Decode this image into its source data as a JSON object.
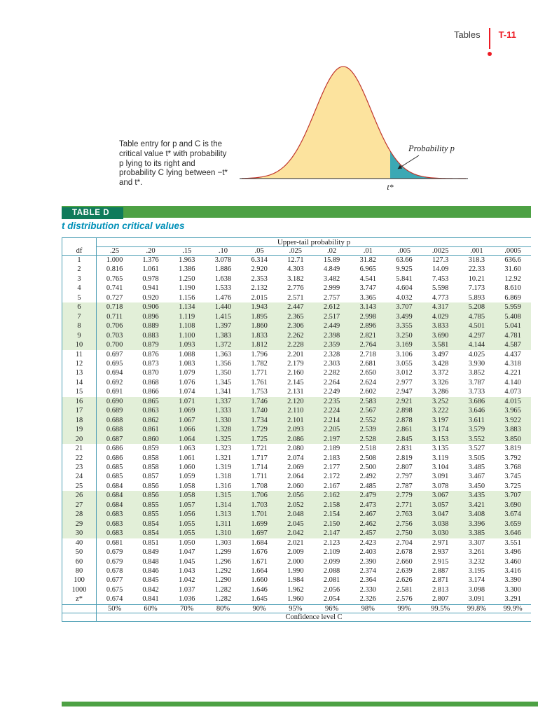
{
  "page": {
    "running_head": "Tables",
    "page_number": "T-11"
  },
  "figure": {
    "caption": "Table entry for p and C is the critical value t* with probability p lying to its right and probability C lying between −t* and t*.",
    "probability_label": "Probability p",
    "critical_value_label": "t*"
  },
  "table": {
    "label": "TABLE D",
    "title": "t distribution critical values",
    "upper_header": "Upper-tail probability p",
    "df_header": "df",
    "col_headers": [
      ".25",
      ".20",
      ".15",
      ".10",
      ".05",
      ".025",
      ".02",
      ".01",
      ".005",
      ".0025",
      ".001",
      ".0005"
    ],
    "rows": [
      {
        "df": "1",
        "values": [
          "1.000",
          "1.376",
          "1.963",
          "3.078",
          "6.314",
          "12.71",
          "15.89",
          "31.82",
          "63.66",
          "127.3",
          "318.3",
          "636.6"
        ]
      },
      {
        "df": "2",
        "values": [
          "0.816",
          "1.061",
          "1.386",
          "1.886",
          "2.920",
          "4.303",
          "4.849",
          "6.965",
          "9.925",
          "14.09",
          "22.33",
          "31.60"
        ]
      },
      {
        "df": "3",
        "values": [
          "0.765",
          "0.978",
          "1.250",
          "1.638",
          "2.353",
          "3.182",
          "3.482",
          "4.541",
          "5.841",
          "7.453",
          "10.21",
          "12.92"
        ]
      },
      {
        "df": "4",
        "values": [
          "0.741",
          "0.941",
          "1.190",
          "1.533",
          "2.132",
          "2.776",
          "2.999",
          "3.747",
          "4.604",
          "5.598",
          "7.173",
          "8.610"
        ]
      },
      {
        "df": "5",
        "values": [
          "0.727",
          "0.920",
          "1.156",
          "1.476",
          "2.015",
          "2.571",
          "2.757",
          "3.365",
          "4.032",
          "4.773",
          "5.893",
          "6.869"
        ]
      },
      {
        "df": "6",
        "values": [
          "0.718",
          "0.906",
          "1.134",
          "1.440",
          "1.943",
          "2.447",
          "2.612",
          "3.143",
          "3.707",
          "4.317",
          "5.208",
          "5.959"
        ]
      },
      {
        "df": "7",
        "values": [
          "0.711",
          "0.896",
          "1.119",
          "1.415",
          "1.895",
          "2.365",
          "2.517",
          "2.998",
          "3.499",
          "4.029",
          "4.785",
          "5.408"
        ]
      },
      {
        "df": "8",
        "values": [
          "0.706",
          "0.889",
          "1.108",
          "1.397",
          "1.860",
          "2.306",
          "2.449",
          "2.896",
          "3.355",
          "3.833",
          "4.501",
          "5.041"
        ]
      },
      {
        "df": "9",
        "values": [
          "0.703",
          "0.883",
          "1.100",
          "1.383",
          "1.833",
          "2.262",
          "2.398",
          "2.821",
          "3.250",
          "3.690",
          "4.297",
          "4.781"
        ]
      },
      {
        "df": "10",
        "values": [
          "0.700",
          "0.879",
          "1.093",
          "1.372",
          "1.812",
          "2.228",
          "2.359",
          "2.764",
          "3.169",
          "3.581",
          "4.144",
          "4.587"
        ]
      },
      {
        "df": "11",
        "values": [
          "0.697",
          "0.876",
          "1.088",
          "1.363",
          "1.796",
          "2.201",
          "2.328",
          "2.718",
          "3.106",
          "3.497",
          "4.025",
          "4.437"
        ]
      },
      {
        "df": "12",
        "values": [
          "0.695",
          "0.873",
          "1.083",
          "1.356",
          "1.782",
          "2.179",
          "2.303",
          "2.681",
          "3.055",
          "3.428",
          "3.930",
          "4.318"
        ]
      },
      {
        "df": "13",
        "values": [
          "0.694",
          "0.870",
          "1.079",
          "1.350",
          "1.771",
          "2.160",
          "2.282",
          "2.650",
          "3.012",
          "3.372",
          "3.852",
          "4.221"
        ]
      },
      {
        "df": "14",
        "values": [
          "0.692",
          "0.868",
          "1.076",
          "1.345",
          "1.761",
          "2.145",
          "2.264",
          "2.624",
          "2.977",
          "3.326",
          "3.787",
          "4.140"
        ]
      },
      {
        "df": "15",
        "values": [
          "0.691",
          "0.866",
          "1.074",
          "1.341",
          "1.753",
          "2.131",
          "2.249",
          "2.602",
          "2.947",
          "3.286",
          "3.733",
          "4.073"
        ]
      },
      {
        "df": "16",
        "values": [
          "0.690",
          "0.865",
          "1.071",
          "1.337",
          "1.746",
          "2.120",
          "2.235",
          "2.583",
          "2.921",
          "3.252",
          "3.686",
          "4.015"
        ]
      },
      {
        "df": "17",
        "values": [
          "0.689",
          "0.863",
          "1.069",
          "1.333",
          "1.740",
          "2.110",
          "2.224",
          "2.567",
          "2.898",
          "3.222",
          "3.646",
          "3.965"
        ]
      },
      {
        "df": "18",
        "values": [
          "0.688",
          "0.862",
          "1.067",
          "1.330",
          "1.734",
          "2.101",
          "2.214",
          "2.552",
          "2.878",
          "3.197",
          "3.611",
          "3.922"
        ]
      },
      {
        "df": "19",
        "values": [
          "0.688",
          "0.861",
          "1.066",
          "1.328",
          "1.729",
          "2.093",
          "2.205",
          "2.539",
          "2.861",
          "3.174",
          "3.579",
          "3.883"
        ]
      },
      {
        "df": "20",
        "values": [
          "0.687",
          "0.860",
          "1.064",
          "1.325",
          "1.725",
          "2.086",
          "2.197",
          "2.528",
          "2.845",
          "3.153",
          "3.552",
          "3.850"
        ]
      },
      {
        "df": "21",
        "values": [
          "0.686",
          "0.859",
          "1.063",
          "1.323",
          "1.721",
          "2.080",
          "2.189",
          "2.518",
          "2.831",
          "3.135",
          "3.527",
          "3.819"
        ]
      },
      {
        "df": "22",
        "values": [
          "0.686",
          "0.858",
          "1.061",
          "1.321",
          "1.717",
          "2.074",
          "2.183",
          "2.508",
          "2.819",
          "3.119",
          "3.505",
          "3.792"
        ]
      },
      {
        "df": "23",
        "values": [
          "0.685",
          "0.858",
          "1.060",
          "1.319",
          "1.714",
          "2.069",
          "2.177",
          "2.500",
          "2.807",
          "3.104",
          "3.485",
          "3.768"
        ]
      },
      {
        "df": "24",
        "values": [
          "0.685",
          "0.857",
          "1.059",
          "1.318",
          "1.711",
          "2.064",
          "2.172",
          "2.492",
          "2.797",
          "3.091",
          "3.467",
          "3.745"
        ]
      },
      {
        "df": "25",
        "values": [
          "0.684",
          "0.856",
          "1.058",
          "1.316",
          "1.708",
          "2.060",
          "2.167",
          "2.485",
          "2.787",
          "3.078",
          "3.450",
          "3.725"
        ]
      },
      {
        "df": "26",
        "values": [
          "0.684",
          "0.856",
          "1.058",
          "1.315",
          "1.706",
          "2.056",
          "2.162",
          "2.479",
          "2.779",
          "3.067",
          "3.435",
          "3.707"
        ]
      },
      {
        "df": "27",
        "values": [
          "0.684",
          "0.855",
          "1.057",
          "1.314",
          "1.703",
          "2.052",
          "2.158",
          "2.473",
          "2.771",
          "3.057",
          "3.421",
          "3.690"
        ]
      },
      {
        "df": "28",
        "values": [
          "0.683",
          "0.855",
          "1.056",
          "1.313",
          "1.701",
          "2.048",
          "2.154",
          "2.467",
          "2.763",
          "3.047",
          "3.408",
          "3.674"
        ]
      },
      {
        "df": "29",
        "values": [
          "0.683",
          "0.854",
          "1.055",
          "1.311",
          "1.699",
          "2.045",
          "2.150",
          "2.462",
          "2.756",
          "3.038",
          "3.396",
          "3.659"
        ]
      },
      {
        "df": "30",
        "values": [
          "0.683",
          "0.854",
          "1.055",
          "1.310",
          "1.697",
          "2.042",
          "2.147",
          "2.457",
          "2.750",
          "3.030",
          "3.385",
          "3.646"
        ]
      },
      {
        "df": "40",
        "values": [
          "0.681",
          "0.851",
          "1.050",
          "1.303",
          "1.684",
          "2.021",
          "2.123",
          "2.423",
          "2.704",
          "2.971",
          "3.307",
          "3.551"
        ]
      },
      {
        "df": "50",
        "values": [
          "0.679",
          "0.849",
          "1.047",
          "1.299",
          "1.676",
          "2.009",
          "2.109",
          "2.403",
          "2.678",
          "2.937",
          "3.261",
          "3.496"
        ]
      },
      {
        "df": "60",
        "values": [
          "0.679",
          "0.848",
          "1.045",
          "1.296",
          "1.671",
          "2.000",
          "2.099",
          "2.390",
          "2.660",
          "2.915",
          "3.232",
          "3.460"
        ]
      },
      {
        "df": "80",
        "values": [
          "0.678",
          "0.846",
          "1.043",
          "1.292",
          "1.664",
          "1.990",
          "2.088",
          "2.374",
          "2.639",
          "2.887",
          "3.195",
          "3.416"
        ]
      },
      {
        "df": "100",
        "values": [
          "0.677",
          "0.845",
          "1.042",
          "1.290",
          "1.660",
          "1.984",
          "2.081",
          "2.364",
          "2.626",
          "2.871",
          "3.174",
          "3.390"
        ]
      },
      {
        "df": "1000",
        "values": [
          "0.675",
          "0.842",
          "1.037",
          "1.282",
          "1.646",
          "1.962",
          "2.056",
          "2.330",
          "2.581",
          "2.813",
          "3.098",
          "3.300"
        ]
      },
      {
        "df": "z*",
        "values": [
          "0.674",
          "0.841",
          "1.036",
          "1.282",
          "1.645",
          "1.960",
          "2.054",
          "2.326",
          "2.576",
          "2.807",
          "3.091",
          "3.291"
        ]
      }
    ],
    "confidence_values": [
      "50%",
      "60%",
      "70%",
      "80%",
      "90%",
      "95%",
      "96%",
      "98%",
      "99%",
      "99.5%",
      "99.8%",
      "99.9%"
    ],
    "confidence_label": "Confidence level C"
  },
  "colors": {
    "accent_green": "#4DA144",
    "label_box": "#0F7B5B",
    "title_teal": "#0090B8",
    "rule": "#4E9FB5",
    "row_shade": "#E2EFD8",
    "red": "#ED1B24",
    "curve_fill": "#FCE39E",
    "curve_stroke": "#C0362C",
    "tail_fill": "#3BA8B4"
  }
}
